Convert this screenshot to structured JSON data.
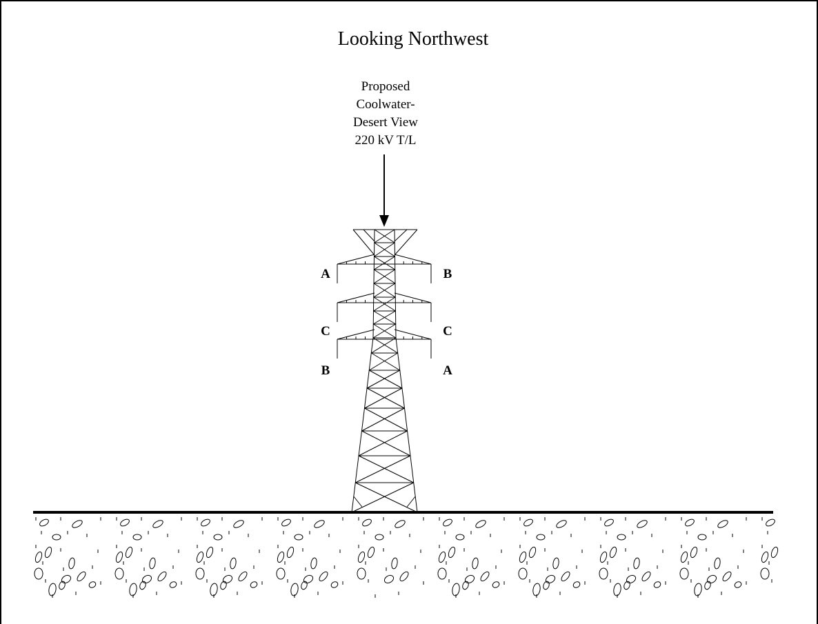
{
  "title": "Looking Northwest",
  "callout": {
    "lines": [
      "Proposed",
      "Coolwater-",
      "Desert View",
      "220 kV T/L"
    ]
  },
  "phases": {
    "left_top": "A",
    "right_top": "B",
    "left_middle": "C",
    "right_middle": "C",
    "left_bottom": "B",
    "right_bottom": "A"
  }
}
